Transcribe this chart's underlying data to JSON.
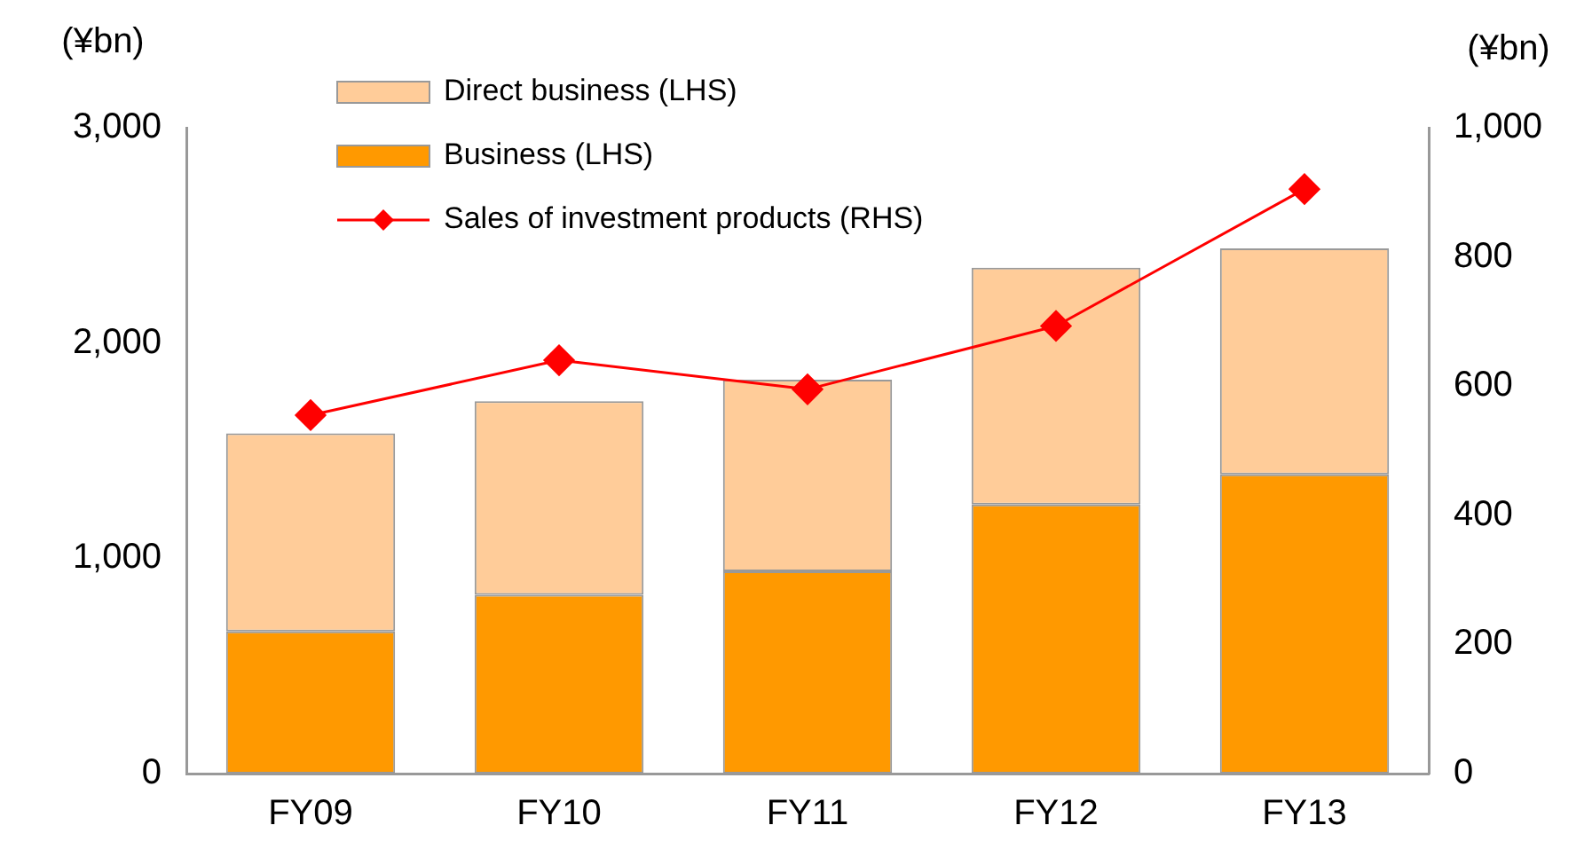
{
  "chart_data": {
    "type": "bar",
    "stacked": true,
    "ylabel": "(¥bn)",
    "y2label": "(¥bn)",
    "categories": [
      "FY09",
      "FY10",
      "FY11",
      "FY12",
      "FY13"
    ],
    "series": [
      {
        "name": "Business (LHS)",
        "color": "#ff9900",
        "values": [
          660,
          830,
          940,
          1250,
          1390
        ]
      },
      {
        "name": "Direct business (LHS)",
        "color": "#ffcc99",
        "values": [
          920,
          900,
          890,
          1100,
          1050
        ]
      },
      {
        "name": "Sales of investment products (RHS)",
        "type": "line",
        "axis": "y2",
        "color": "#ff0000",
        "marker": "diamond",
        "values": [
          555,
          640,
          595,
          693,
          905
        ]
      }
    ],
    "ylim": [
      0,
      3000
    ],
    "yticks": [
      0,
      {
        "value": 1000,
        "label": "1,000"
      },
      {
        "value": 2000,
        "label": "2,000"
      },
      {
        "value": 3000,
        "label": "3,000"
      }
    ],
    "y2lim": [
      0,
      1000
    ],
    "y2ticks": [
      0,
      200,
      400,
      600,
      800,
      {
        "value": 1000,
        "label": "1,000"
      }
    ],
    "grid": false,
    "legend": "top left"
  }
}
